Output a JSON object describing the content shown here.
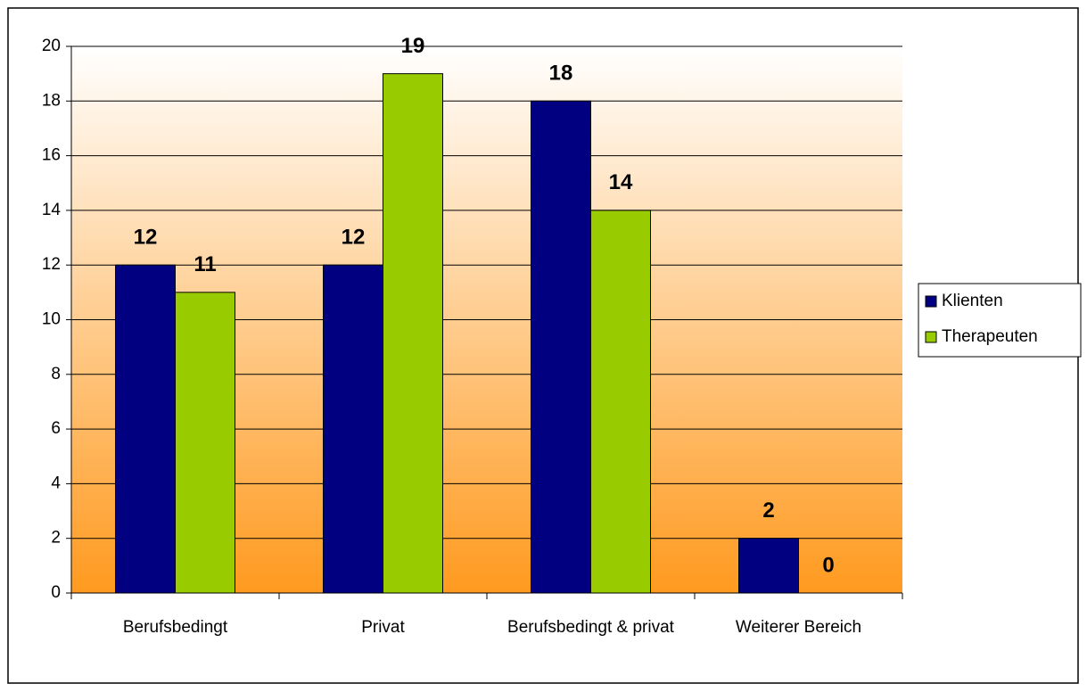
{
  "chart_data": {
    "type": "bar",
    "categories": [
      "Berufsbedingt",
      "Privat",
      "Berufsbedingt & privat",
      "Weiterer Bereich"
    ],
    "series": [
      {
        "name": "Klienten",
        "color": "#000080",
        "values": [
          12,
          12,
          18,
          2
        ]
      },
      {
        "name": "Therapeuten",
        "color": "#99cc00",
        "values": [
          11,
          19,
          14,
          0
        ]
      }
    ],
    "ylim": [
      0,
      20
    ],
    "yticks": [
      0,
      2,
      4,
      6,
      8,
      10,
      12,
      14,
      16,
      18,
      20
    ],
    "grid": true,
    "legend": "right"
  }
}
